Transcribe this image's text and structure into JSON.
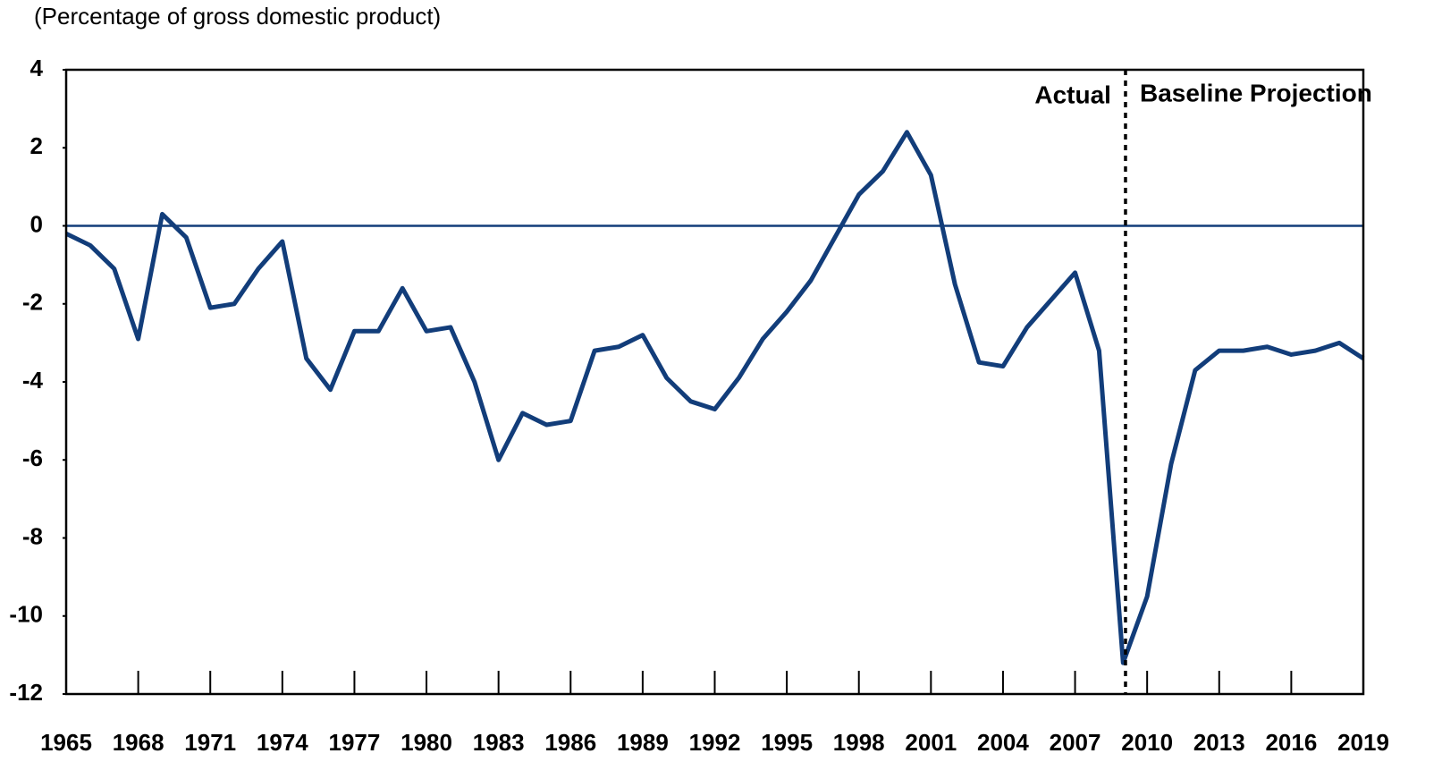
{
  "chart_data": {
    "type": "line",
    "subtitle": "(Percentage of gross domestic product)",
    "x": [
      1965,
      1966,
      1967,
      1968,
      1969,
      1970,
      1971,
      1972,
      1973,
      1974,
      1975,
      1976,
      1977,
      1978,
      1979,
      1980,
      1981,
      1982,
      1983,
      1984,
      1985,
      1986,
      1987,
      1988,
      1989,
      1990,
      1991,
      1992,
      1993,
      1994,
      1995,
      1996,
      1997,
      1998,
      1999,
      2000,
      2001,
      2002,
      2003,
      2004,
      2005,
      2006,
      2007,
      2008,
      2009,
      2010,
      2011,
      2012,
      2013,
      2014,
      2015,
      2016,
      2017,
      2018,
      2019
    ],
    "series": [
      {
        "color": "#123d7a",
        "values": [
          -0.2,
          -0.5,
          -1.1,
          -2.9,
          0.3,
          -0.3,
          -2.1,
          -2.0,
          -1.1,
          -0.4,
          -3.4,
          -4.2,
          -2.7,
          -2.7,
          -1.6,
          -2.7,
          -2.6,
          -4.0,
          -6.0,
          -4.8,
          -5.1,
          -5.0,
          -3.2,
          -3.1,
          -2.8,
          -3.9,
          -4.5,
          -4.7,
          -3.9,
          -2.9,
          -2.2,
          -1.4,
          -0.3,
          0.8,
          1.4,
          2.4,
          1.3,
          -1.5,
          -3.5,
          -3.6,
          -2.6,
          -1.9,
          -1.2,
          -3.2,
          -11.2,
          -9.5,
          -6.1,
          -3.7,
          -3.2,
          -3.2,
          -3.1,
          -3.3,
          -3.2,
          -3.0,
          -3.4
        ]
      }
    ],
    "xlim": [
      1965,
      2019
    ],
    "xticks": [
      1965,
      1968,
      1971,
      1974,
      1977,
      1980,
      1983,
      1986,
      1989,
      1992,
      1995,
      1998,
      2001,
      2004,
      2007,
      2010,
      2013,
      2016,
      2019
    ],
    "ylim": [
      -12,
      4
    ],
    "yticks": [
      -12,
      -10,
      -8,
      -6,
      -4,
      -2,
      0,
      2,
      4
    ],
    "zero_line_color": "#123d7a",
    "divider_x": 2009.1,
    "annotations": [
      "Actual",
      "Baseline Projection"
    ]
  }
}
